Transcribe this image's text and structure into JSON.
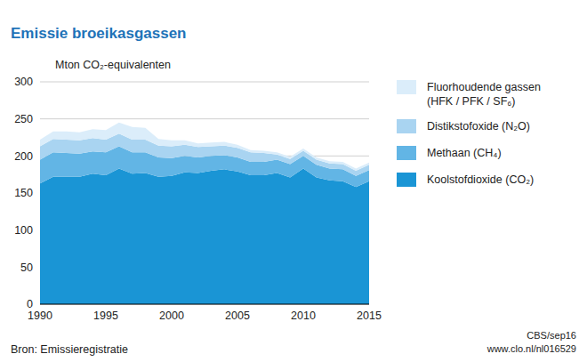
{
  "chart_data": {
    "type": "area",
    "title": "Emissie broeikasgassen",
    "ylabel": "Mton CO₂-equivalenten",
    "source": "Bron: Emissieregistratie",
    "credit": "CBS/sep16",
    "url": "www.clo.nl/nl016529",
    "stacked": true,
    "grid": true,
    "legend": "right",
    "x": [
      1990,
      1991,
      1992,
      1993,
      1994,
      1995,
      1996,
      1997,
      1998,
      1999,
      2000,
      2001,
      2002,
      2003,
      2004,
      2005,
      2006,
      2007,
      2008,
      2009,
      2010,
      2011,
      2012,
      2013,
      2014,
      2015
    ],
    "xlim": [
      1990,
      2015
    ],
    "xticks": [
      1990,
      1995,
      2000,
      2005,
      2010,
      2015
    ],
    "ylim": [
      0,
      300
    ],
    "yticks": [
      0,
      50,
      100,
      150,
      200,
      250,
      300
    ],
    "series": [
      {
        "name": "Koolstofdioxide (CO₂)",
        "color": "#1a95d5",
        "values": [
          163,
          172,
          172,
          172,
          176,
          174,
          183,
          176,
          177,
          172,
          173,
          178,
          177,
          180,
          182,
          179,
          174,
          174,
          177,
          171,
          183,
          171,
          167,
          166,
          158,
          166
        ]
      },
      {
        "name": "Methaan (CH₄)",
        "color": "#62b5e5",
        "values": [
          32,
          33,
          32,
          31,
          30,
          31,
          30,
          29,
          28,
          26,
          24,
          22,
          21,
          20,
          19,
          19,
          18,
          18,
          18,
          18,
          17,
          17,
          16,
          16,
          15,
          15
        ]
      },
      {
        "name": "Distikstofoxide (N₂O)",
        "color": "#a9d4f1",
        "values": [
          18,
          18,
          18,
          18,
          18,
          17,
          17,
          17,
          17,
          16,
          16,
          15,
          14,
          13,
          13,
          13,
          13,
          12,
          7,
          7,
          7,
          7,
          7,
          7,
          7,
          7
        ]
      },
      {
        "name": "Fluorhoudende gassen (HFK / PFK / SF₆)",
        "color": "#dbedfa",
        "values": [
          9,
          10,
          11,
          11,
          12,
          13,
          15,
          17,
          16,
          9,
          8,
          6,
          5,
          5,
          5,
          4,
          3,
          3,
          3,
          3,
          3,
          3,
          3,
          3,
          3,
          3
        ]
      }
    ]
  }
}
